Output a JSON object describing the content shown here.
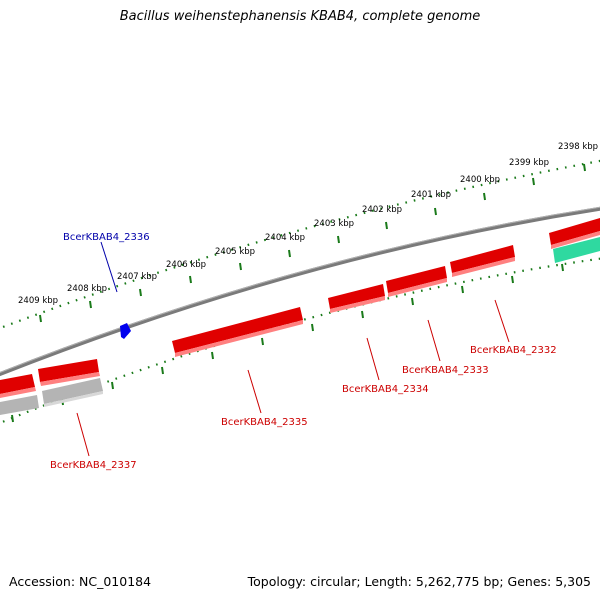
{
  "title": "Bacillus weihenstephanensis KBAB4, complete genome",
  "footer": {
    "accession": "Accession: NC_010184",
    "summary": "Topology: circular; Length: 5,262,775 bp; Genes: 5,305"
  },
  "colors": {
    "backbone": "#808080",
    "tick": "#1a7a1a",
    "forward_gene": "#e00000",
    "forward_gene_shadow": "#ff8080",
    "reverse_gene": "#b4b4b4",
    "highlight_gene": "#2fd9a0",
    "marker": "#0000ee",
    "label_forward": "#0000aa",
    "label_reverse": "#cc0000"
  },
  "scale_labels": [
    {
      "text": "2398 kbp"
    },
    {
      "text": "2399 kbp"
    },
    {
      "text": "2400 kbp"
    },
    {
      "text": "2401 kbp"
    },
    {
      "text": "2402 kbp"
    },
    {
      "text": "2403 kbp"
    },
    {
      "text": "2404 kbp"
    },
    {
      "text": "2405 kbp"
    },
    {
      "text": "2406 kbp"
    },
    {
      "text": "2407 kbp"
    },
    {
      "text": "2408 kbp"
    },
    {
      "text": "2409 kbp"
    }
  ],
  "gene_labels": [
    {
      "text": "BcerKBAB4_2336",
      "strand": "forward"
    },
    {
      "text": "BcerKBAB4_2332",
      "strand": "reverse"
    },
    {
      "text": "BcerKBAB4_2333",
      "strand": "reverse"
    },
    {
      "text": "BcerKBAB4_2334",
      "strand": "reverse"
    },
    {
      "text": "BcerKBAB4_2335",
      "strand": "reverse"
    },
    {
      "text": "BcerKBAB4_2337",
      "strand": "reverse"
    }
  ]
}
